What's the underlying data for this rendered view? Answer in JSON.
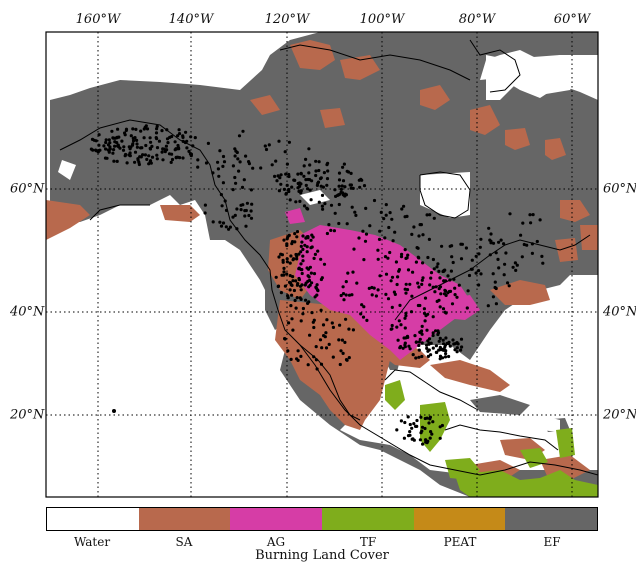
{
  "map": {
    "longitude_labels": [
      "160°W",
      "140°W",
      "120°W",
      "100°W",
      "80°W",
      "60°W"
    ],
    "latitude_labels": [
      "60°N",
      "40°N",
      "20°N"
    ],
    "colors": {
      "water": "#ffffff",
      "sa": "#b8694d",
      "ag": "#d63da6",
      "tf": "#7fad1c",
      "peat": "#c58a18",
      "ef": "#666666",
      "fire_dots": "#000000",
      "coastline": "#000000"
    }
  },
  "colorbar": {
    "title": "Burning Land Cover",
    "classes": [
      {
        "label": "Water",
        "color": "#ffffff"
      },
      {
        "label": "SA",
        "color": "#b8694d"
      },
      {
        "label": "AG",
        "color": "#d63da6"
      },
      {
        "label": "TF",
        "color": "#7fad1c"
      },
      {
        "label": "PEAT",
        "color": "#c58a18"
      },
      {
        "label": "EF",
        "color": "#666666"
      }
    ]
  }
}
